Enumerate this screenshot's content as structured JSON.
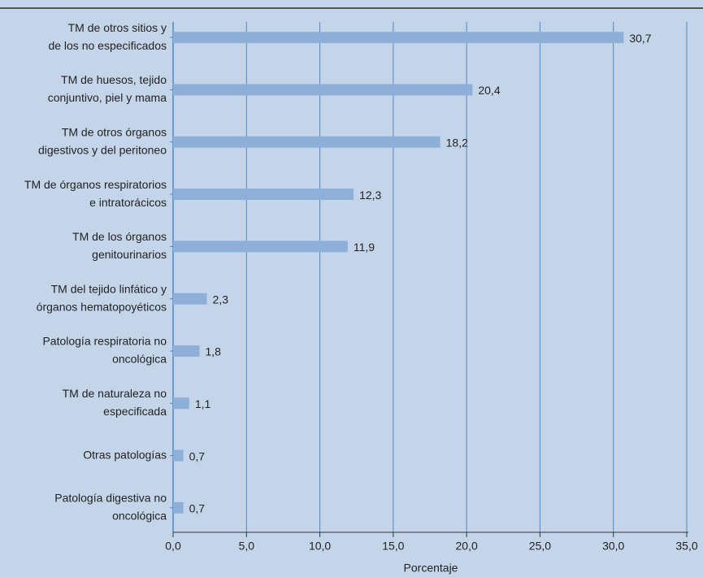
{
  "chart_data": {
    "type": "bar",
    "orientation": "horizontal",
    "categories": [
      [
        "TM de otros sitios y",
        "de los no especificados"
      ],
      [
        "TM de huesos, tejido",
        "conjuntivo, piel y mama"
      ],
      [
        "TM de otros órganos",
        "digestivos y del peritoneo"
      ],
      [
        "TM de órganos respiratorios",
        "e intratorácicos"
      ],
      [
        "TM de los órganos",
        "genitourinarios"
      ],
      [
        "TM del tejido linfático y",
        "órganos hematopoyéticos"
      ],
      [
        "Patología respiratoria no",
        "oncológica"
      ],
      [
        "TM de naturaleza no",
        "especificada"
      ],
      [
        "Otras patologías"
      ],
      [
        "Patología digestiva no",
        "oncológica"
      ]
    ],
    "values": [
      30.7,
      20.4,
      18.2,
      12.3,
      11.9,
      2.3,
      1.8,
      1.1,
      0.7,
      0.7
    ],
    "value_labels": [
      "30,7",
      "20,4",
      "18,2",
      "12,3",
      "11,9",
      "2,3",
      "1,8",
      "1,1",
      "0,7",
      "0,7"
    ],
    "color": "#8eb0d8",
    "xlabel": "Porcentaje",
    "xlim": [
      0,
      35
    ],
    "xticks": [
      {
        "value": 0,
        "label": "0,0"
      },
      {
        "value": 5,
        "label": "5,0"
      },
      {
        "value": 10,
        "label": "10,0"
      },
      {
        "value": 15,
        "label": "15,0"
      },
      {
        "value": 20,
        "label": "20,0"
      },
      {
        "value": 25,
        "label": "25,0"
      },
      {
        "value": 30,
        "label": "30,0"
      },
      {
        "value": 35,
        "label": "35,0"
      }
    ],
    "grid": true
  }
}
